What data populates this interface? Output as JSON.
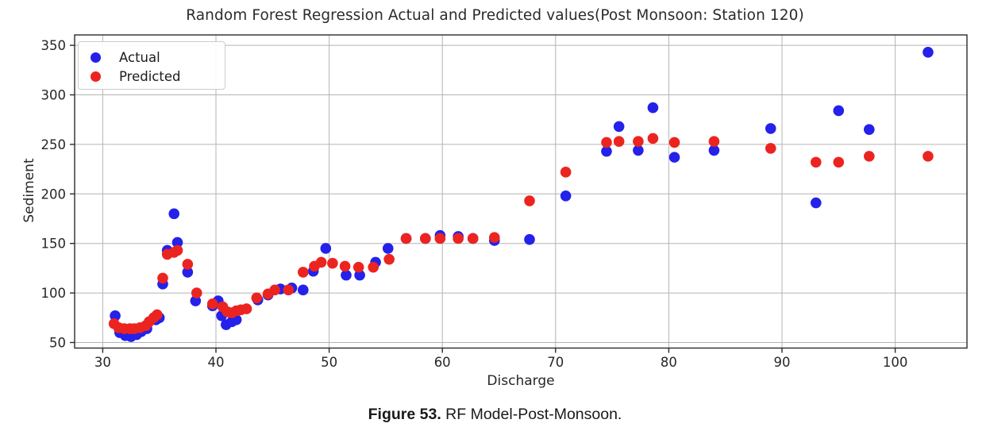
{
  "figure": {
    "caption_bold": "Figure 53.",
    "caption_rest": " RF Model-Post-Monsoon."
  },
  "chart_data": {
    "type": "scatter",
    "title": "Random Forest Regression Actual and Predicted values(Post Monsoon: Station 120)",
    "xlabel": "Discharge",
    "ylabel": "Sediment",
    "xlim": [
      27.5,
      106.3
    ],
    "ylim": [
      44,
      360
    ],
    "x_ticks": [
      30,
      40,
      50,
      60,
      70,
      80,
      90,
      100
    ],
    "y_ticks": [
      50,
      100,
      150,
      200,
      250,
      300,
      350
    ],
    "grid": true,
    "grid_color": "#b4b4b4",
    "axis_color": "#2a2a2a",
    "legend": {
      "position": "upper-left",
      "entries": [
        {
          "label": "Actual",
          "color": "#2421ea"
        },
        {
          "label": "Predicted",
          "color": "#ec2420"
        }
      ]
    },
    "series": [
      {
        "name": "Actual",
        "color": "#2421ea",
        "points": [
          [
            31.1,
            77
          ],
          [
            31.5,
            60
          ],
          [
            32.0,
            57
          ],
          [
            32.5,
            56
          ],
          [
            33.0,
            58
          ],
          [
            33.4,
            61
          ],
          [
            33.9,
            64
          ],
          [
            34.7,
            73
          ],
          [
            35.0,
            75
          ],
          [
            35.3,
            109
          ],
          [
            35.7,
            143
          ],
          [
            36.3,
            180
          ],
          [
            36.6,
            151
          ],
          [
            37.5,
            121
          ],
          [
            38.2,
            92
          ],
          [
            39.7,
            87
          ],
          [
            40.2,
            92
          ],
          [
            40.5,
            77
          ],
          [
            40.9,
            68
          ],
          [
            41.4,
            71
          ],
          [
            41.8,
            73
          ],
          [
            43.7,
            93
          ],
          [
            44.6,
            98
          ],
          [
            45.7,
            104
          ],
          [
            46.7,
            105
          ],
          [
            47.7,
            103
          ],
          [
            48.6,
            122
          ],
          [
            49.7,
            145
          ],
          [
            51.5,
            118
          ],
          [
            52.7,
            118
          ],
          [
            54.1,
            131
          ],
          [
            55.2,
            145
          ],
          [
            56.8,
            155
          ],
          [
            58.5,
            155
          ],
          [
            59.8,
            158
          ],
          [
            61.4,
            157
          ],
          [
            62.7,
            155
          ],
          [
            64.6,
            153
          ],
          [
            67.7,
            154
          ],
          [
            70.9,
            198
          ],
          [
            74.5,
            243
          ],
          [
            75.6,
            268
          ],
          [
            77.3,
            244
          ],
          [
            78.6,
            287
          ],
          [
            80.5,
            237
          ],
          [
            84.0,
            244
          ],
          [
            89.0,
            266
          ],
          [
            93.0,
            191
          ],
          [
            95.0,
            284
          ],
          [
            97.7,
            265
          ],
          [
            102.9,
            343
          ]
        ]
      },
      {
        "name": "Predicted",
        "color": "#ec2420",
        "points": [
          [
            31.0,
            69
          ],
          [
            31.4,
            65
          ],
          [
            31.9,
            64
          ],
          [
            32.4,
            64
          ],
          [
            32.8,
            64
          ],
          [
            33.3,
            65
          ],
          [
            33.8,
            67
          ],
          [
            34.1,
            71
          ],
          [
            34.5,
            75
          ],
          [
            34.8,
            78
          ],
          [
            35.3,
            115
          ],
          [
            35.7,
            139
          ],
          [
            36.3,
            141
          ],
          [
            36.6,
            143
          ],
          [
            37.5,
            129
          ],
          [
            38.3,
            100
          ],
          [
            39.7,
            89
          ],
          [
            40.6,
            86
          ],
          [
            41.0,
            81
          ],
          [
            41.4,
            80
          ],
          [
            41.8,
            82
          ],
          [
            42.2,
            83
          ],
          [
            42.7,
            84
          ],
          [
            43.6,
            95
          ],
          [
            44.6,
            99
          ],
          [
            45.2,
            103
          ],
          [
            46.4,
            103
          ],
          [
            47.7,
            121
          ],
          [
            48.7,
            127
          ],
          [
            49.3,
            131
          ],
          [
            50.3,
            130
          ],
          [
            51.4,
            127
          ],
          [
            52.6,
            126
          ],
          [
            53.9,
            126
          ],
          [
            55.3,
            134
          ],
          [
            56.8,
            155
          ],
          [
            58.5,
            155
          ],
          [
            59.8,
            155
          ],
          [
            61.4,
            155
          ],
          [
            62.7,
            155
          ],
          [
            64.6,
            156
          ],
          [
            67.7,
            193
          ],
          [
            70.9,
            222
          ],
          [
            74.5,
            252
          ],
          [
            75.6,
            253
          ],
          [
            77.3,
            253
          ],
          [
            78.6,
            256
          ],
          [
            80.5,
            252
          ],
          [
            84.0,
            253
          ],
          [
            89.0,
            246
          ],
          [
            93.0,
            232
          ],
          [
            95.0,
            232
          ],
          [
            97.7,
            238
          ],
          [
            102.9,
            238
          ]
        ]
      }
    ]
  }
}
